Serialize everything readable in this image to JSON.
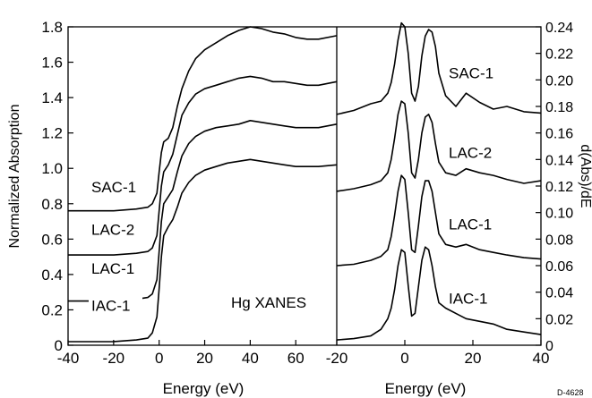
{
  "figure_id": "D-4628",
  "chart_data": [
    {
      "type": "line",
      "title": "",
      "annotation": "Hg XANES",
      "xlabel": "Energy (eV)",
      "ylabel": "Normalized Absorption",
      "xlim": [
        -40,
        78
      ],
      "ylim": [
        0,
        1.8
      ],
      "xticks": [
        -40,
        -20,
        0,
        20,
        40,
        60
      ],
      "yticks": [
        0,
        0.2,
        0.4,
        0.6,
        0.8,
        1.0,
        1.2,
        1.4,
        1.6,
        1.8
      ],
      "x": [
        -40,
        -20,
        -10,
        -5,
        -3,
        -1,
        0,
        1,
        2,
        4,
        6,
        8,
        10,
        13,
        16,
        20,
        25,
        30,
        35,
        40,
        45,
        50,
        55,
        60,
        65,
        70,
        78
      ],
      "series": [
        {
          "name": "SAC-1",
          "label_value": 0.87,
          "values": [
            0.76,
            0.76,
            0.77,
            0.78,
            0.8,
            0.86,
            0.98,
            1.09,
            1.15,
            1.17,
            1.23,
            1.35,
            1.45,
            1.55,
            1.62,
            1.67,
            1.71,
            1.75,
            1.78,
            1.8,
            1.79,
            1.77,
            1.76,
            1.74,
            1.73,
            1.73,
            1.75
          ]
        },
        {
          "name": "LAC-2",
          "label_value": 0.63,
          "values": [
            0.51,
            0.51,
            0.52,
            0.53,
            0.55,
            0.62,
            0.76,
            0.9,
            0.98,
            1.02,
            1.08,
            1.19,
            1.3,
            1.37,
            1.42,
            1.45,
            1.47,
            1.49,
            1.51,
            1.52,
            1.51,
            1.49,
            1.49,
            1.48,
            1.47,
            1.47,
            1.49
          ]
        },
        {
          "name": "LAC-1",
          "label_value": 0.41,
          "values": [
            0.25,
            0.25,
            0.26,
            0.27,
            0.29,
            0.37,
            0.53,
            0.7,
            0.8,
            0.84,
            0.88,
            0.98,
            1.07,
            1.14,
            1.18,
            1.21,
            1.23,
            1.24,
            1.25,
            1.27,
            1.26,
            1.25,
            1.24,
            1.23,
            1.23,
            1.23,
            1.25
          ]
        },
        {
          "name": "IAC-1",
          "label_value": 0.2,
          "values": [
            0.02,
            0.02,
            0.03,
            0.04,
            0.07,
            0.16,
            0.32,
            0.5,
            0.62,
            0.67,
            0.71,
            0.78,
            0.86,
            0.92,
            0.96,
            0.99,
            1.01,
            1.03,
            1.04,
            1.05,
            1.04,
            1.03,
            1.02,
            1.01,
            1.01,
            1.01,
            1.02
          ]
        }
      ]
    },
    {
      "type": "line",
      "title": "",
      "xlabel": "Energy (eV)",
      "ylabel": "d(Abs)/dE",
      "xlim": [
        -20,
        40
      ],
      "ylim": [
        0,
        0.24
      ],
      "xticks": [
        -20,
        0,
        20,
        40
      ],
      "yticks": [
        0,
        0.02,
        0.04,
        0.06,
        0.08,
        0.1,
        0.12,
        0.14,
        0.16,
        0.18,
        0.2,
        0.22,
        0.24
      ],
      "x": [
        -20,
        -15,
        -10,
        -7,
        -5,
        -4,
        -3,
        -2,
        -1,
        0,
        1,
        2,
        3,
        4,
        5,
        6,
        7,
        8,
        9,
        10,
        12,
        15,
        18,
        22,
        26,
        30,
        35,
        40
      ],
      "series": [
        {
          "name": "SAC-1",
          "label_value": 0.202,
          "values": [
            0.174,
            0.177,
            0.182,
            0.184,
            0.19,
            0.198,
            0.212,
            0.23,
            0.243,
            0.24,
            0.22,
            0.19,
            0.184,
            0.195,
            0.218,
            0.233,
            0.238,
            0.236,
            0.225,
            0.205,
            0.188,
            0.18,
            0.19,
            0.183,
            0.178,
            0.18,
            0.176,
            0.175
          ]
        },
        {
          "name": "LAC-2",
          "label_value": 0.142,
          "values": [
            0.116,
            0.118,
            0.121,
            0.124,
            0.13,
            0.14,
            0.156,
            0.174,
            0.184,
            0.182,
            0.16,
            0.13,
            0.126,
            0.14,
            0.16,
            0.172,
            0.174,
            0.168,
            0.152,
            0.138,
            0.13,
            0.128,
            0.133,
            0.13,
            0.128,
            0.125,
            0.122,
            0.124
          ]
        },
        {
          "name": "LAC-1",
          "label_value": 0.088,
          "values": [
            0.06,
            0.061,
            0.064,
            0.067,
            0.072,
            0.082,
            0.098,
            0.116,
            0.128,
            0.125,
            0.1,
            0.072,
            0.07,
            0.09,
            0.112,
            0.124,
            0.124,
            0.116,
            0.1,
            0.084,
            0.076,
            0.074,
            0.076,
            0.072,
            0.07,
            0.068,
            0.066,
            0.065
          ]
        },
        {
          "name": "IAC-1",
          "label_value": 0.032,
          "values": [
            0.004,
            0.005,
            0.007,
            0.012,
            0.02,
            0.028,
            0.042,
            0.06,
            0.072,
            0.07,
            0.045,
            0.022,
            0.024,
            0.044,
            0.064,
            0.074,
            0.072,
            0.06,
            0.044,
            0.032,
            0.028,
            0.024,
            0.02,
            0.018,
            0.016,
            0.012,
            0.01,
            0.008
          ]
        }
      ]
    }
  ]
}
